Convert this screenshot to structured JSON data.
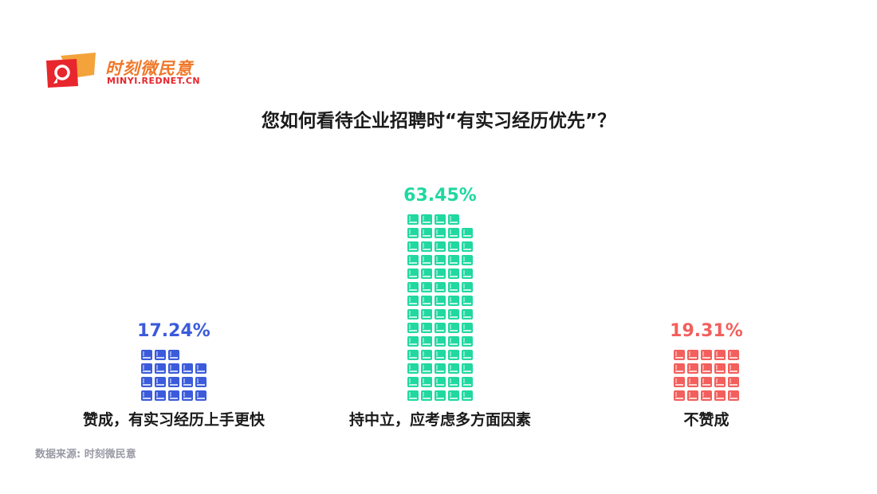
{
  "logo": {
    "name": "时刻微民意",
    "url": "MINYI.REDNET.CN",
    "colors": {
      "primary": "#e8262d",
      "secondary": "#f3a33a"
    }
  },
  "title": "您如何看待企业招聘时“有实习经历优先”？",
  "source": "数据来源: 时刻微民意",
  "chart_data": {
    "type": "bar",
    "style": "pictograph",
    "icon": "book-icon",
    "title": "您如何看待企业招聘时“有实习经历优先”？",
    "categories": [
      "赞成，有实习经历上手更快",
      "持中立，应考虑多方面因素",
      "不赞成"
    ],
    "values": [
      17.24,
      63.45,
      19.31
    ],
    "labels": [
      "17.24%",
      "63.45%",
      "19.31%"
    ],
    "icon_counts": [
      18,
      69,
      20
    ],
    "colors": [
      "#3b5bdb",
      "#20d8a0",
      "#f25f5c"
    ],
    "xlabel": "",
    "ylabel": "",
    "grid": false,
    "legend": "none"
  }
}
